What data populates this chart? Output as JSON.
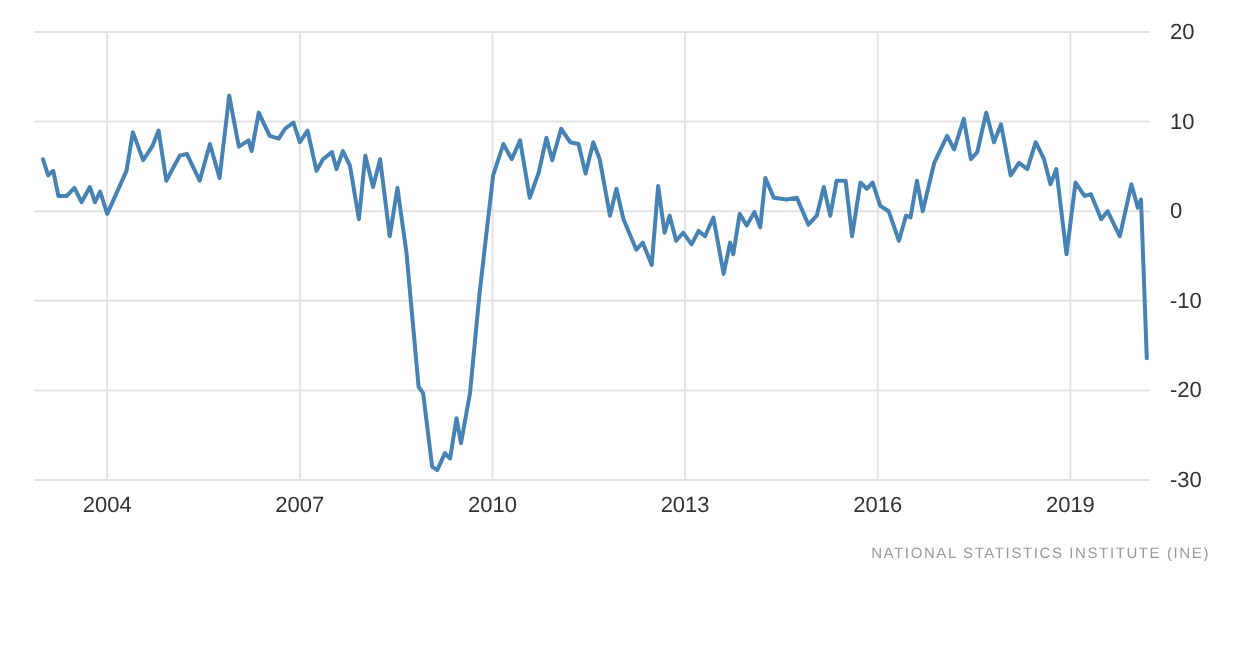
{
  "chart_data": {
    "type": "line",
    "x": [
      2003.0,
      2003.08,
      2003.16,
      2003.24,
      2003.37,
      2003.49,
      2003.6,
      2003.73,
      2003.81,
      2003.89,
      2004.0,
      2004.3,
      2004.4,
      2004.56,
      2004.7,
      2004.8,
      2004.92,
      2005.13,
      2005.24,
      2005.44,
      2005.6,
      2005.75,
      2005.9,
      2006.05,
      2006.2,
      2006.25,
      2006.36,
      2006.53,
      2006.67,
      2006.77,
      2006.9,
      2007.0,
      2007.12,
      2007.26,
      2007.36,
      2007.5,
      2007.57,
      2007.67,
      2007.78,
      2007.92,
      2008.02,
      2008.14,
      2008.25,
      2008.4,
      2008.52,
      2008.66,
      2008.85,
      2008.92,
      2009.06,
      2009.14,
      2009.26,
      2009.34,
      2009.44,
      2009.51,
      2009.65,
      2009.8,
      2010.01,
      2010.17,
      2010.3,
      2010.43,
      2010.58,
      2010.72,
      2010.84,
      2010.93,
      2011.07,
      2011.21,
      2011.34,
      2011.45,
      2011.57,
      2011.67,
      2011.83,
      2011.93,
      2012.04,
      2012.24,
      2012.34,
      2012.48,
      2012.58,
      2012.68,
      2012.76,
      2012.86,
      2012.97,
      2013.1,
      2013.21,
      2013.31,
      2013.44,
      2013.6,
      2013.7,
      2013.75,
      2013.85,
      2013.96,
      2014.08,
      2014.17,
      2014.25,
      2014.38,
      2014.58,
      2014.74,
      2014.92,
      2015.05,
      2015.16,
      2015.26,
      2015.36,
      2015.5,
      2015.6,
      2015.73,
      2015.83,
      2015.92,
      2016.04,
      2016.17,
      2016.33,
      2016.44,
      2016.51,
      2016.61,
      2016.7,
      2016.88,
      2017.08,
      2017.19,
      2017.34,
      2017.45,
      2017.55,
      2017.69,
      2017.81,
      2017.92,
      2018.07,
      2018.2,
      2018.33,
      2018.46,
      2018.59,
      2018.69,
      2018.78,
      2018.94,
      2019.08,
      2019.22,
      2019.32,
      2019.48,
      2019.58,
      2019.77,
      2019.95,
      2020.05,
      2020.1,
      2020.19
    ],
    "series": [
      {
        "color": "#4682b4",
        "values": [
          5.8,
          4.0,
          4.5,
          1.7,
          1.7,
          2.6,
          1.0,
          2.7,
          1.0,
          2.2,
          -0.3,
          4.5,
          8.8,
          5.7,
          7.2,
          9.0,
          3.4,
          6.2,
          6.4,
          3.4,
          7.5,
          3.7,
          12.9,
          7.2,
          7.9,
          6.7,
          11.0,
          8.4,
          8.1,
          9.2,
          9.9,
          7.7,
          9.0,
          4.5,
          5.8,
          6.6,
          4.7,
          6.7,
          5.1,
          -0.9,
          6.2,
          2.7,
          5.8,
          -2.8,
          2.6,
          -4.6,
          -19.6,
          -20.3,
          -28.5,
          -28.9,
          -27.0,
          -27.6,
          -23.1,
          -25.9,
          -20.3,
          -9.1,
          4.0,
          7.5,
          5.8,
          7.9,
          1.5,
          4.3,
          8.2,
          5.7,
          9.2,
          7.7,
          7.5,
          4.2,
          7.7,
          5.8,
          -0.5,
          2.5,
          -0.9,
          -4.3,
          -3.5,
          -6.0,
          2.8,
          -2.4,
          -0.5,
          -3.3,
          -2.4,
          -3.7,
          -2.2,
          -2.8,
          -0.7,
          -7.0,
          -3.5,
          -4.8,
          -0.3,
          -1.6,
          -0.1,
          -1.8,
          3.7,
          1.5,
          1.3,
          1.5,
          -1.5,
          -0.5,
          2.7,
          -0.5,
          3.4,
          3.4,
          -2.8,
          3.2,
          2.5,
          3.2,
          0.6,
          0.0,
          -3.3,
          -0.5,
          -0.7,
          3.4,
          0.0,
          5.4,
          8.4,
          6.9,
          10.3,
          5.8,
          6.6,
          11.0,
          7.7,
          9.7,
          4.0,
          5.4,
          4.7,
          7.7,
          5.8,
          3.0,
          4.7,
          -4.8,
          3.2,
          1.7,
          1.9,
          -0.9,
          0.0,
          -2.8,
          3.0,
          0.4,
          1.3,
          -16.4
        ]
      }
    ],
    "xlim": [
      2002.86,
      2020.24
    ],
    "xticks": [
      2004,
      2007,
      2010,
      2013,
      2016,
      2019
    ],
    "ylim": [
      -30,
      20
    ],
    "yticks": [
      -30,
      -20,
      -10,
      0,
      10,
      20
    ],
    "grid": true,
    "line_style": "solid",
    "marker": "none",
    "annotations": [
      "NATIONAL STATISTICS INSTITUTE (INE)"
    ]
  }
}
